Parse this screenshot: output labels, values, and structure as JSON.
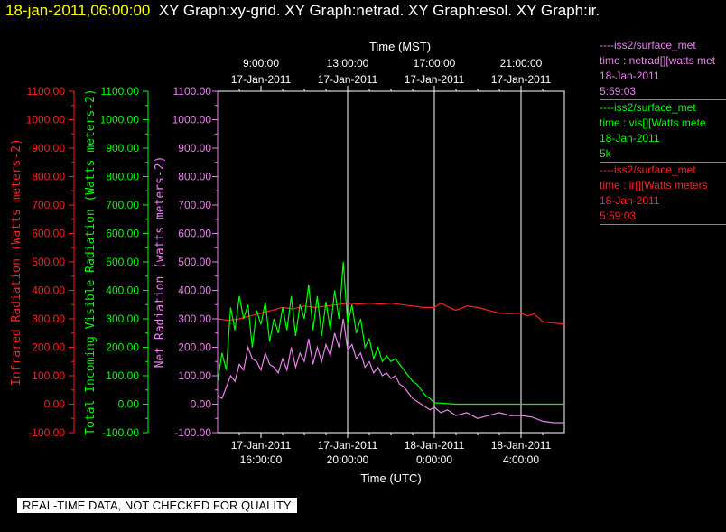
{
  "header": {
    "timestamp": "18-jan-2011,06:00:00",
    "graphs": "XY Graph:xy-grid.  XY Graph:netrad.  XY Graph:esol.  XY Graph:ir."
  },
  "disclaimer": "REAL-TIME DATA, NOT CHECKED FOR QUALITY",
  "legend": [
    {
      "source": "----iss2/surface_met",
      "var": "time : netrad[][watts met",
      "date": "18-Jan-2011",
      "time": "5:59:03",
      "color": "#e884e8"
    },
    {
      "source": "----iss2/surface_met",
      "var": "time : vis[][Watts mete",
      "date": "18-Jan-2011",
      "time": "5k",
      "color": "#00ff00"
    },
    {
      "source": "----iss2/surface_met",
      "var": "time : ir[][Watts meters",
      "date": "18-Jan-2011",
      "time": "5:59:03",
      "color": "#ff2020"
    }
  ],
  "chart_data": {
    "type": "line",
    "top_axis": {
      "title": "Time (MST)",
      "ticks": [
        {
          "time": "9:00:00",
          "date": "17-Jan-2011",
          "utc_hour": 16
        },
        {
          "time": "13:00:00",
          "date": "17-Jan-2011",
          "utc_hour": 20
        },
        {
          "time": "17:00:00",
          "date": "17-Jan-2011",
          "utc_hour": 24
        },
        {
          "time": "21:00:00",
          "date": "17-Jan-2011",
          "utc_hour": 28
        }
      ]
    },
    "bottom_axis": {
      "title": "Time (UTC)",
      "ticks": [
        {
          "date": "17-Jan-2011",
          "time": "16:00:00",
          "utc_hour": 16
        },
        {
          "date": "17-Jan-2011",
          "time": "20:00:00",
          "utc_hour": 20
        },
        {
          "date": "18-Jan-2011",
          "time": "0:00:00",
          "utc_hour": 24
        },
        {
          "date": "18-Jan-2011",
          "time": "4:00:00",
          "utc_hour": 28
        }
      ]
    },
    "x_range_utc_hours": [
      14,
      30
    ],
    "y_axes": [
      {
        "label": "Infrared Radiation (Watts meters-2)",
        "color": "#ff2020",
        "ticks": [
          "-100.00",
          "0.00",
          "100.00",
          "200.00",
          "300.00",
          "400.00",
          "500.00",
          "600.00",
          "700.00",
          "800.00",
          "900.00",
          "1000.00",
          "1100.00"
        ]
      },
      {
        "label": "Total Incoming Visible Radiation (Watts meters-2)",
        "color": "#00ff00",
        "ticks": [
          "-100.00",
          "0.00",
          "100.00",
          "200.00",
          "300.00",
          "400.00",
          "500.00",
          "600.00",
          "700.00",
          "800.00",
          "900.00",
          "1000.00",
          "1100.00"
        ]
      },
      {
        "label": "Net Radiation (watts meters-2)",
        "color": "#e884e8",
        "ticks": [
          "-100.00",
          "0.00",
          "100.00",
          "200.00",
          "300.00",
          "400.00",
          "500.00",
          "600.00",
          "700.00",
          "800.00",
          "900.00",
          "1000.00",
          "1100.00"
        ]
      }
    ],
    "y_range": [
      -100,
      1100
    ],
    "grid": true,
    "series": [
      {
        "name": "ir",
        "color": "#ff2020",
        "x": [
          14.0,
          14.5,
          15.0,
          15.5,
          16.0,
          16.5,
          17.0,
          17.5,
          18.0,
          18.5,
          19.0,
          19.5,
          20.0,
          20.5,
          21.0,
          21.5,
          22.0,
          22.5,
          23.0,
          23.5,
          24.0,
          24.3,
          24.7,
          25.0,
          25.5,
          26.0,
          26.5,
          27.0,
          27.5,
          28.0,
          28.3,
          28.6,
          29.0,
          29.5,
          30.0
        ],
        "y": [
          300,
          295,
          300,
          310,
          320,
          330,
          340,
          335,
          345,
          340,
          345,
          350,
          355,
          352,
          355,
          352,
          355,
          350,
          345,
          340,
          340,
          355,
          340,
          330,
          345,
          340,
          330,
          320,
          318,
          320,
          310,
          318,
          290,
          285,
          282
        ]
      },
      {
        "name": "vis",
        "color": "#00ff00",
        "x": [
          14.0,
          14.2,
          14.4,
          14.6,
          14.8,
          15.0,
          15.2,
          15.4,
          15.6,
          15.8,
          16.0,
          16.2,
          16.4,
          16.6,
          16.8,
          17.0,
          17.2,
          17.4,
          17.6,
          17.8,
          18.0,
          18.2,
          18.4,
          18.6,
          18.8,
          19.0,
          19.2,
          19.4,
          19.6,
          19.8,
          20.0,
          20.2,
          20.4,
          20.6,
          20.8,
          21.0,
          21.2,
          21.4,
          21.6,
          21.8,
          22.0,
          22.2,
          22.4,
          22.6,
          22.8,
          23.0,
          23.2,
          23.4,
          23.6,
          23.8,
          24.0,
          25.0,
          26.0,
          27.0,
          28.0,
          29.0,
          30.0
        ],
        "y": [
          80,
          180,
          120,
          340,
          260,
          380,
          300,
          350,
          200,
          330,
          280,
          360,
          220,
          300,
          250,
          340,
          260,
          380,
          240,
          350,
          300,
          420,
          260,
          380,
          240,
          360,
          260,
          400,
          300,
          500,
          280,
          350,
          250,
          300,
          200,
          230,
          160,
          200,
          150,
          170,
          150,
          160,
          140,
          120,
          100,
          80,
          70,
          50,
          30,
          20,
          5,
          0,
          0,
          0,
          0,
          0,
          0
        ]
      },
      {
        "name": "netrad",
        "color": "#e884e8",
        "x": [
          14.0,
          14.2,
          14.4,
          14.6,
          14.8,
          15.0,
          15.2,
          15.4,
          15.6,
          15.8,
          16.0,
          16.2,
          16.4,
          16.6,
          16.8,
          17.0,
          17.2,
          17.4,
          17.6,
          17.8,
          18.0,
          18.2,
          18.4,
          18.6,
          18.8,
          19.0,
          19.2,
          19.4,
          19.6,
          19.8,
          20.0,
          20.2,
          20.4,
          20.6,
          20.8,
          21.0,
          21.2,
          21.4,
          21.6,
          21.8,
          22.0,
          22.2,
          22.4,
          22.6,
          22.8,
          23.0,
          23.2,
          23.4,
          23.6,
          23.8,
          24.0,
          24.3,
          24.6,
          25.0,
          25.5,
          26.0,
          26.5,
          27.0,
          27.5,
          28.0,
          28.5,
          29.0,
          29.5,
          30.0
        ],
        "y": [
          30,
          20,
          60,
          100,
          80,
          140,
          120,
          200,
          160,
          150,
          120,
          180,
          140,
          130,
          110,
          160,
          120,
          200,
          130,
          180,
          150,
          230,
          140,
          200,
          150,
          210,
          170,
          250,
          200,
          300,
          190,
          210,
          160,
          180,
          130,
          150,
          110,
          130,
          100,
          110,
          90,
          100,
          70,
          60,
          40,
          20,
          10,
          0,
          -10,
          -20,
          -10,
          -30,
          -20,
          -40,
          -30,
          -50,
          -40,
          -30,
          -40,
          -40,
          -45,
          -60,
          -65,
          -65
        ]
      }
    ]
  }
}
